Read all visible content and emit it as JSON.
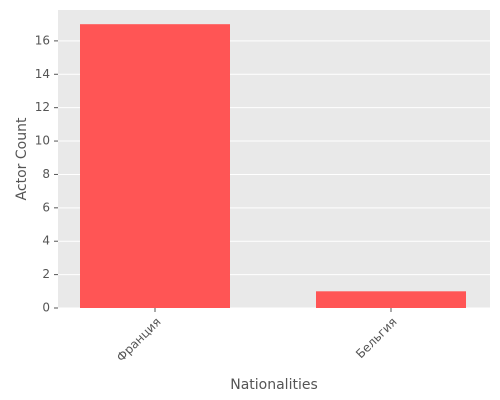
{
  "chart_data": {
    "type": "bar",
    "categories": [
      "Франция",
      "Бельгия"
    ],
    "values": [
      17,
      1
    ],
    "color": "#ff5555",
    "xlabel": "Nationalities",
    "ylabel": "Actor Count",
    "ylim": [
      0,
      17.85
    ],
    "yticks": [
      0,
      2,
      4,
      6,
      8,
      10,
      12,
      14,
      16
    ],
    "grid": true
  }
}
